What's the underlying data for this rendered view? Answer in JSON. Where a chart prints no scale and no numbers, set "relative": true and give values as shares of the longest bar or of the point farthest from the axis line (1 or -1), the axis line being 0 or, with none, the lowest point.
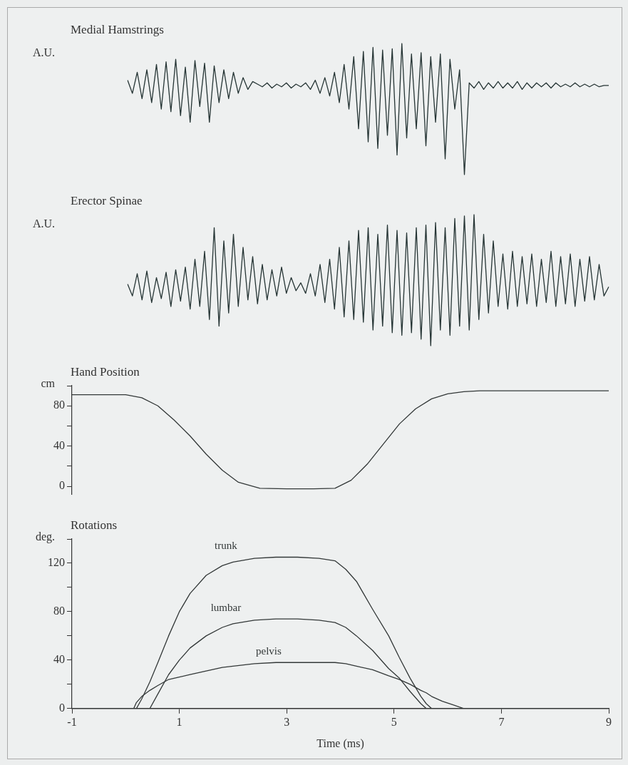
{
  "chart_data": [
    {
      "type": "line",
      "title": "Medial Hamstrings",
      "ylabel": "A.U.",
      "relative": true,
      "tick_labels": false,
      "marker": "none",
      "categories": [
        null,
        null,
        null,
        null,
        null,
        null,
        null,
        null,
        null,
        null,
        null,
        null,
        null,
        null,
        null,
        null,
        null,
        null,
        null,
        null,
        null,
        null,
        null,
        null,
        null,
        null,
        null,
        null,
        null,
        null,
        null,
        null,
        null,
        null,
        null,
        null,
        null,
        null,
        null,
        null,
        null,
        null,
        null,
        null,
        null,
        null,
        null,
        null,
        null,
        null,
        null,
        null,
        null,
        null,
        null,
        null,
        null,
        null,
        null,
        null,
        null,
        null,
        null,
        null,
        null,
        null,
        null,
        null,
        null,
        null,
        null,
        null,
        null,
        null,
        null,
        null,
        null,
        null,
        null,
        null,
        null,
        null,
        null,
        null,
        null,
        null,
        null,
        null,
        null,
        null,
        null,
        null,
        null,
        null,
        null,
        null,
        null,
        null,
        null,
        null,
        null
      ],
      "series": [
        {
          "color": "#263535",
          "values": [
            0.72,
            0.62,
            0.78,
            0.58,
            0.8,
            0.55,
            0.84,
            0.5,
            0.86,
            0.48,
            0.88,
            0.45,
            0.82,
            0.4,
            0.87,
            0.52,
            0.85,
            0.4,
            0.83,
            0.55,
            0.8,
            0.58,
            0.78,
            0.62,
            0.74,
            0.65,
            0.71,
            0.69,
            0.67,
            0.7,
            0.66,
            0.69,
            0.67,
            0.7,
            0.66,
            0.69,
            0.67,
            0.7,
            0.65,
            0.72,
            0.62,
            0.74,
            0.6,
            0.78,
            0.55,
            0.84,
            0.5,
            0.9,
            0.35,
            0.94,
            0.25,
            0.97,
            0.2,
            0.95,
            0.3,
            0.96,
            0.15,
            1.0,
            0.28,
            0.92,
            0.35,
            0.93,
            0.22,
            0.9,
            0.4,
            0.92,
            0.12,
            0.88,
            0.5,
            0.8,
            0.0,
            0.7,
            0.66,
            0.71,
            0.65,
            0.7,
            0.66,
            0.71,
            0.66,
            0.7,
            0.66,
            0.71,
            0.65,
            0.7,
            0.66,
            0.7,
            0.67,
            0.7,
            0.66,
            0.7,
            0.67,
            0.69,
            0.67,
            0.7,
            0.67,
            0.69,
            0.67,
            0.69,
            0.67,
            0.68,
            0.68
          ]
        }
      ]
    },
    {
      "type": "line",
      "title": "Erector Spinae",
      "ylabel": "A.U.",
      "relative": true,
      "tick_labels": false,
      "marker": "none",
      "categories": [
        null,
        null,
        null,
        null,
        null,
        null,
        null,
        null,
        null,
        null,
        null,
        null,
        null,
        null,
        null,
        null,
        null,
        null,
        null,
        null,
        null,
        null,
        null,
        null,
        null,
        null,
        null,
        null,
        null,
        null,
        null,
        null,
        null,
        null,
        null,
        null,
        null,
        null,
        null,
        null,
        null,
        null,
        null,
        null,
        null,
        null,
        null,
        null,
        null,
        null,
        null,
        null,
        null,
        null,
        null,
        null,
        null,
        null,
        null,
        null,
        null,
        null,
        null,
        null,
        null,
        null,
        null,
        null,
        null,
        null,
        null,
        null,
        null,
        null,
        null,
        null,
        null,
        null,
        null,
        null,
        null,
        null,
        null,
        null,
        null,
        null,
        null,
        null,
        null,
        null,
        null,
        null,
        null,
        null,
        null,
        null,
        null,
        null,
        null,
        null,
        null
      ],
      "series": [
        {
          "color": "#263535",
          "values": [
            0.47,
            0.38,
            0.55,
            0.35,
            0.57,
            0.33,
            0.52,
            0.36,
            0.56,
            0.3,
            0.58,
            0.34,
            0.6,
            0.28,
            0.66,
            0.3,
            0.72,
            0.2,
            0.9,
            0.15,
            0.8,
            0.25,
            0.85,
            0.3,
            0.75,
            0.35,
            0.68,
            0.32,
            0.62,
            0.35,
            0.58,
            0.38,
            0.6,
            0.4,
            0.52,
            0.42,
            0.48,
            0.4,
            0.55,
            0.38,
            0.62,
            0.33,
            0.66,
            0.28,
            0.75,
            0.22,
            0.8,
            0.2,
            0.88,
            0.18,
            0.9,
            0.12,
            0.85,
            0.15,
            0.92,
            0.1,
            0.88,
            0.08,
            0.86,
            0.1,
            0.9,
            0.05,
            0.92,
            0.0,
            0.94,
            0.12,
            0.9,
            0.08,
            0.97,
            0.15,
            0.99,
            0.12,
            1.0,
            0.2,
            0.85,
            0.25,
            0.8,
            0.3,
            0.7,
            0.28,
            0.72,
            0.3,
            0.68,
            0.32,
            0.7,
            0.3,
            0.66,
            0.33,
            0.72,
            0.3,
            0.68,
            0.32,
            0.7,
            0.3,
            0.66,
            0.34,
            0.68,
            0.35,
            0.62,
            0.38,
            0.45
          ]
        }
      ]
    },
    {
      "type": "line",
      "title": "Hand Position",
      "ylabel": "cm",
      "tick_labels": "y",
      "marker": "none",
      "xlim": [
        -1,
        9
      ],
      "ylim": [
        -8,
        100
      ],
      "yticks": [
        0,
        {
          "value": 20,
          "label": null
        },
        40,
        {
          "value": 60,
          "label": null
        },
        80,
        {
          "value": 100,
          "label": null
        }
      ],
      "x": [
        -1,
        0,
        0.3,
        0.6,
        0.9,
        1.2,
        1.5,
        1.8,
        2.1,
        2.5,
        3,
        3.5,
        3.9,
        4.2,
        4.5,
        4.8,
        5.1,
        5.4,
        5.7,
        6,
        6.3,
        6.6,
        7,
        8,
        9
      ],
      "series": [
        {
          "color": "#333838",
          "values": [
            91,
            91,
            88,
            80,
            66,
            50,
            32,
            16,
            4,
            -2,
            -2.5,
            -2.5,
            -2,
            6,
            22,
            42,
            62,
            77,
            87,
            92,
            94,
            95,
            95,
            95,
            95
          ]
        }
      ]
    },
    {
      "type": "line",
      "title": "Rotations",
      "ylabel": "deg.",
      "xlabel": "Time (ms)",
      "marker": "none",
      "xlim": [
        -1,
        9
      ],
      "ylim": [
        0,
        140
      ],
      "xticks": [
        -1,
        1,
        3,
        5,
        7,
        9
      ],
      "yticks": [
        0,
        {
          "value": 20,
          "label": null
        },
        40,
        {
          "value": 60,
          "label": null
        },
        80,
        {
          "value": 100,
          "label": null
        },
        120,
        {
          "value": 140,
          "label": null
        }
      ],
      "x": [
        -1,
        0,
        0.15,
        0.2,
        0.3,
        0.45,
        0.6,
        0.8,
        1,
        1.2,
        1.5,
        1.8,
        2,
        2.4,
        2.8,
        3.2,
        3.6,
        3.9,
        4.1,
        4.3,
        4.6,
        4.9,
        5.1,
        5.3,
        5.5,
        5.6,
        5.7,
        5.9,
        6.1,
        6.3,
        7,
        9
      ],
      "series": [
        {
          "name": "trunk",
          "color": "#333838",
          "values": [
            0,
            0,
            0,
            0,
            8,
            22,
            38,
            60,
            80,
            95,
            110,
            118,
            121,
            124,
            125,
            125,
            124,
            122,
            115,
            105,
            82,
            60,
            42,
            25,
            10,
            4,
            0,
            0,
            0,
            0,
            0,
            0
          ]
        },
        {
          "name": "lumbar",
          "color": "#333838",
          "values": [
            0,
            0,
            0,
            0,
            0,
            0,
            12,
            28,
            40,
            50,
            60,
            67,
            70,
            73,
            74,
            74,
            73,
            71,
            67,
            60,
            48,
            33,
            25,
            14,
            4,
            0,
            0,
            0,
            0,
            0,
            0,
            0
          ]
        },
        {
          "name": "pelvis",
          "color": "#333838",
          "values": [
            0,
            0,
            0,
            5,
            10,
            15,
            19,
            24,
            26,
            28,
            31,
            34,
            35,
            37,
            38,
            38,
            38,
            38,
            37,
            35,
            32,
            27,
            24,
            20,
            15,
            13,
            10,
            6,
            3,
            0,
            0,
            0
          ]
        }
      ]
    }
  ]
}
